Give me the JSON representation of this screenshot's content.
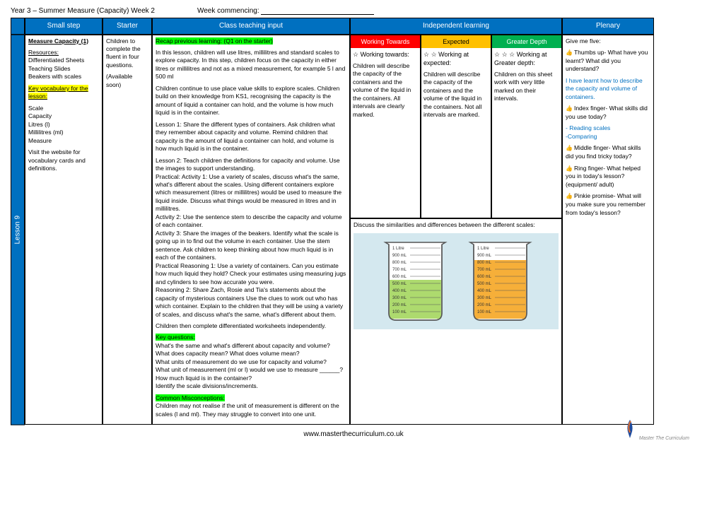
{
  "header": {
    "title": "Year 3 – Summer Measure (Capacity)  Week 2",
    "commencing": "Week commencing:"
  },
  "columns": {
    "smallstep": "Small step",
    "starter": "Starter",
    "classinput": "Class teaching input",
    "independent": "Independent learning",
    "plenary": "Plenary"
  },
  "lesson_label": "Lesson 9",
  "smallstep": {
    "title": "Measure Capacity (1)",
    "resources_label": "Resources:",
    "resources": "Differentiated Sheets\nTeaching Slides\nBeakers with scales",
    "vocab_label": "Key vocabulary for the lesson:",
    "vocab": "Scale\nCapacity\nLitres (l)\nMillilitres (ml)\nMeasure",
    "note": "Visit the website for vocabulary cards and definitions."
  },
  "starter": {
    "text": "Children to complete the fluent in four questions.",
    "avail": "(Available soon)"
  },
  "classinput": {
    "recap": "Recap previous learning: (Q1 on the starter)",
    "p1": "In this lesson, children will use litres, millilitres and standard scales to explore capacity. In this step, children focus on  the capacity in either litres or millilitres and not as a mixed measurement, for example 5 l and 500 ml",
    "p2": "Children continue to use place value skills to explore scales. Children build on their knowledge from KS1,  recognising the capacity is the amount of liquid a container can hold, and the volume is how much liquid  is in the container.",
    "p3": "Lesson 1: Share the different types of containers. Ask children what they remember about capacity and volume.  Remind children that capacity is the amount of liquid a container can hold, and volume is how much liquid is in the container.",
    "p4": "Lesson 2: Teach children the definitions for capacity and volume. Use the images to support understanding.",
    "p5": "Practical: Activity 1: Use a variety of scales, discuss what's the same, what's different about the scales. Using different containers explore which measurement (litres or millilitres) would be used to measure the liquid inside. Discuss what things would be measured in litres and in millilitres.",
    "p6": "Activity 2: Use the sentence stem to describe the capacity and volume of each container.",
    "p7": "Activity 3: Share the images of the beakers. Identify what the scale is going up in to find out the volume in each container. Use the stem sentence. Ask children to keep thinking about how much liquid is in each of the containers.",
    "p8": "Practical Reasoning 1: Use a variety of containers. Can you estimate how much liquid they hold? Check your estimates using measuring jugs and cylinders to see how accurate you were.",
    "p9": "Reasoning 2: Share Zach, Rosie and Tia's statements about the capacity of mysterious containers Use the clues to work out who has which container. Explain to the children that they will be using a variety of scales, and discuss what's the same, what's different about them.",
    "p10": "Children then complete differentiated worksheets independently.",
    "kq_label": "Key questions:",
    "kq": "What's the same and what's different about capacity and volume?\nWhat does capacity mean? What does volume mean?\nWhat units of measurement do we use for capacity and volume?\nWhat unit of measurement (ml or l) would we use to measure ______?\nHow much liquid is in the container?\nIdentify the scale divisions/increments.",
    "cm_label": "Common Misconceptions:",
    "cm": "Children may not realise if the unit of measurement is different on the scales (l and ml). They may struggle to convert into one unit."
  },
  "wt": {
    "head": "Working Towards",
    "star": "☆  Working towards:",
    "text": "Children will describe the capacity of the containers and the volume of the liquid in the containers. All intervals are clearly marked."
  },
  "exp": {
    "head": "Expected",
    "star": "☆ ☆ Working at expected:",
    "text": "Children will describe the capacity of the containers and the volume of the liquid in the containers. Not all intervals are marked."
  },
  "gd": {
    "head": "Greater Depth",
    "star": "☆ ☆ ☆ Working at Greater depth:",
    "text": "Children on this sheet work with very little marked on their intervals."
  },
  "discuss": "Discuss the similarities and differences between the different scales:",
  "beaker": {
    "labels": [
      "1 Litre",
      "900 mL",
      "800 mL",
      "700 mL",
      "600 mL",
      "500 mL",
      "400 mL",
      "300 mL",
      "200 mL",
      "100 mL"
    ],
    "fill1_color": "#a4d65e",
    "fill1_level": 0.55,
    "fill2_color": "#f5a623",
    "fill2_level": 0.8,
    "bg": "#d4e8ef"
  },
  "plenary": {
    "title": "Give me five:",
    "thumb": "Thumbs up- What have you learnt? What did you understand?",
    "ans1": "I have learnt how to describe the capacity and volume of containers.",
    "index": "Index finger- What skills did you use today?",
    "ans2": "- Reading scales\n-Comparing",
    "middle": "Middle finger- What skills did you find tricky today?",
    "ring": "Ring finger- What helped you in today's lesson? (equipment/ adult)",
    "pinkie": "Pinkie promise- What will you make sure you remember from today's lesson?"
  },
  "footer": {
    "url": "www.masterthecurriculum.co.uk",
    "brand": "Master The Curriculum"
  }
}
